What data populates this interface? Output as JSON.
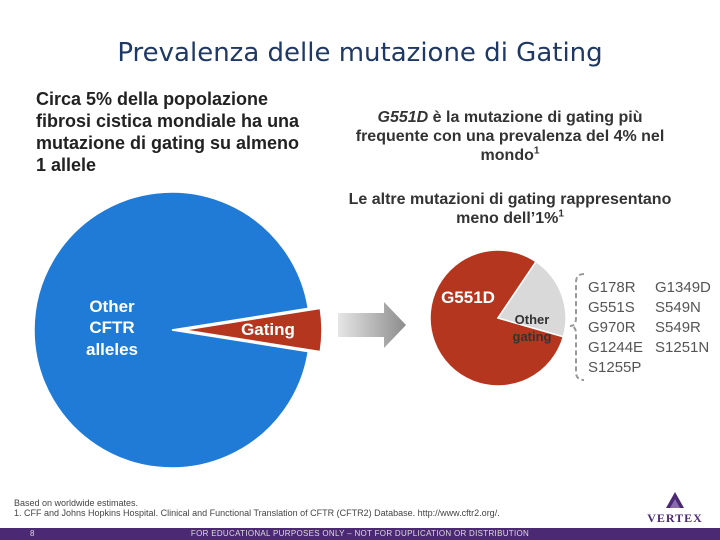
{
  "slide": {
    "title": "Prevalenza delle mutazione di Gating",
    "left_text": "Circa 5% della popolazione fibrosi cistica mondiale ha una mutazione di gating su almeno 1 allele",
    "right_text_1_italic": "G551D",
    "right_text_1_rest": " è la mutazione di gating più frequente con una prevalenza del 4% nel mondo",
    "right_text_1_sup": "1",
    "right_text_2": "Le altre mutazioni di gating rappresentano meno dell’1%",
    "right_text_2_sup": "1",
    "footnote_1": "Based on worldwide estimates.",
    "footnote_2": "1. CFF and Johns Hopkins Hospital. Clinical and Functional Translation of CFTR (CFTR2) Database. http://www.cftr2.org/.",
    "footer_text": "FOR EDUCATIONAL PURPOSES ONLY – NOT FOR DUPLICATION OR DISTRIBUTION",
    "page_number": "8",
    "logo_text": "VERTEX"
  },
  "colors": {
    "title": "#1f3864",
    "blue": "#1f7bd6",
    "red": "#b5361f",
    "grey": "#d9d9d9",
    "purple": "#4b2a73"
  },
  "other_mutations": [
    "G178R",
    "G1349D",
    "G551S",
    "S549N",
    "G970R",
    "S549R",
    "G1244E",
    "S1251N",
    "S1255P"
  ],
  "chart_data": [
    {
      "type": "pie",
      "labels": [
        "Other CFTR alleles",
        "Gating"
      ],
      "values": [
        95,
        5
      ],
      "colors": [
        "#1f7bd6",
        "#b5361f"
      ],
      "exploded": "Gating"
    },
    {
      "type": "pie",
      "labels": [
        "G551D",
        "Other gating"
      ],
      "values": [
        4,
        1
      ],
      "colors": [
        "#b5361f",
        "#d9d9d9"
      ]
    }
  ]
}
